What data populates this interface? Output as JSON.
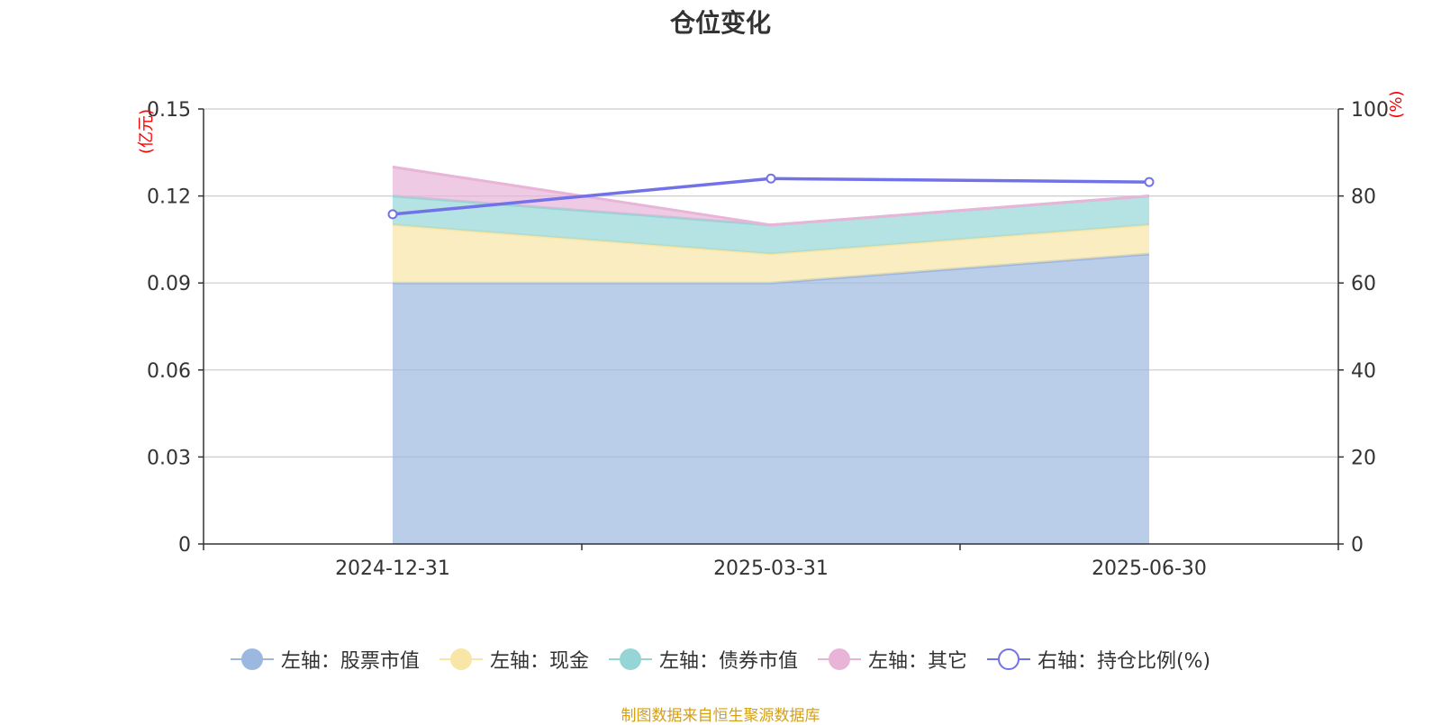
{
  "title": "仓位变化",
  "source": "制图数据来自恒生聚源数据库",
  "chart_data": {
    "type": "area",
    "categories": [
      "2024-12-31",
      "2025-03-31",
      "2025-06-30"
    ],
    "stacked": true,
    "left_axis": {
      "unit": "(亿元)",
      "ylim": [
        0,
        0.15
      ],
      "ticks": [
        "0",
        "0.03",
        "0.06",
        "0.09",
        "0.12",
        "0.15"
      ]
    },
    "right_axis": {
      "unit": "(%)",
      "ylim": [
        0,
        100
      ],
      "ticks": [
        "0",
        "20",
        "40",
        "60",
        "80",
        "100"
      ]
    },
    "series": [
      {
        "name": "左轴：股票市值",
        "axis": "left",
        "type": "area",
        "values": [
          0.09,
          0.09,
          0.1
        ],
        "color": "#9cb8e0"
      },
      {
        "name": "左轴：现金",
        "axis": "left",
        "type": "area",
        "values": [
          0.02,
          0.01,
          0.01
        ],
        "color": "#f7e6a6"
      },
      {
        "name": "左轴：债券市值",
        "axis": "left",
        "type": "area",
        "values": [
          0.01,
          0.01,
          0.01
        ],
        "color": "#95d5d5"
      },
      {
        "name": "左轴：其它",
        "axis": "left",
        "type": "area",
        "values": [
          0.01,
          0.0,
          0.0
        ],
        "color": "#e8b4d8"
      },
      {
        "name": "右轴：持仓比例(%)",
        "axis": "right",
        "type": "line",
        "values": [
          75.8,
          84.0,
          83.2
        ],
        "color": "#7272e8"
      }
    ],
    "grid": true,
    "legend_position": "bottom"
  }
}
